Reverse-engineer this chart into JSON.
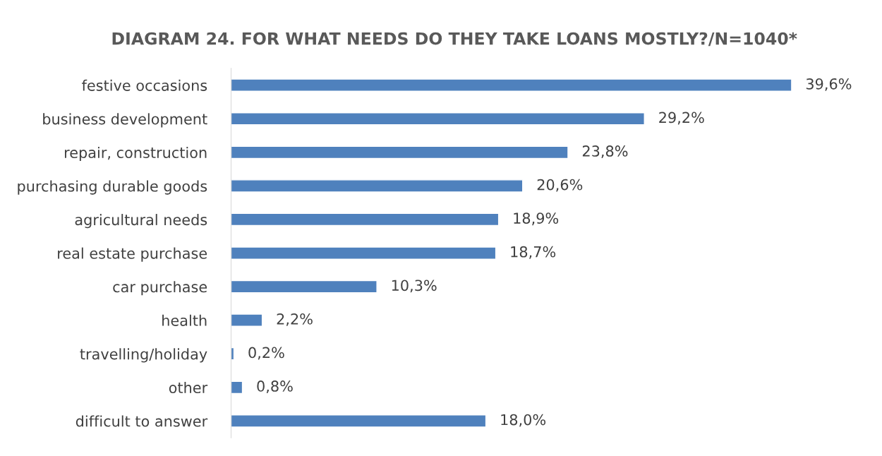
{
  "chart_data": {
    "type": "bar",
    "orientation": "horizontal",
    "title": "DIAGRAM 24. FOR WHAT NEEDS DO THEY TAKE LOANS MOSTLY?/N=1040*",
    "categories": [
      "festive occasions",
      "business development",
      "repair, construction",
      "purchasing durable goods",
      "agricultural needs",
      "real estate purchase",
      "car purchase",
      "health",
      "travelling/holiday",
      "other",
      "difficult to answer"
    ],
    "values": [
      39.6,
      29.2,
      23.8,
      20.6,
      18.9,
      18.7,
      10.3,
      2.2,
      0.2,
      0.8,
      18.0
    ],
    "value_labels": [
      "39,6%",
      "29,2%",
      "23,8%",
      "20,6%",
      "18,9%",
      "18,7%",
      "10,3%",
      "2,2%",
      "0,2%",
      "0,8%",
      "18,0%"
    ],
    "color": "#4f81bd",
    "grid": false,
    "legend": false
  }
}
